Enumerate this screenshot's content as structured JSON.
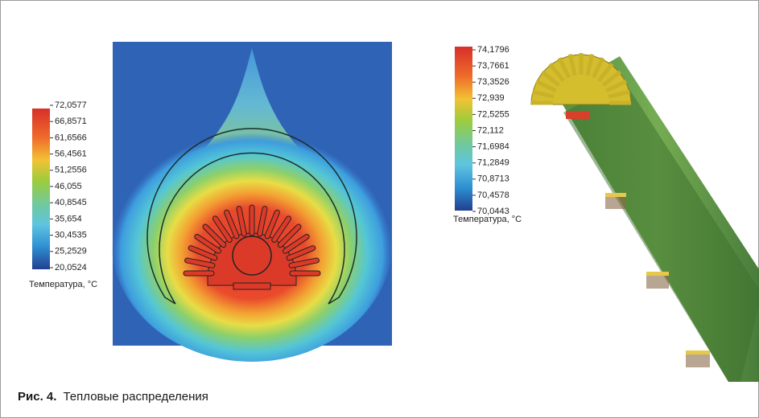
{
  "left_colorbar": {
    "ticks": [
      "72,0577",
      "66,8571",
      "61,6566",
      "56,4561",
      "51,2556",
      "46,055",
      "40,8545",
      "35,654",
      "30,4535",
      "25,2529",
      "20,0524"
    ],
    "unit": "Температура, °C"
  },
  "right_colorbar": {
    "ticks": [
      "74,1796",
      "73,7661",
      "73,3526",
      "72,939",
      "72,5255",
      "72,112",
      "71,6984",
      "71,2849",
      "70,8713",
      "70,4578",
      "70,0443"
    ],
    "unit": "Температура, °C"
  },
  "caption": {
    "label": "Рис. 4.",
    "text": "Тепловые распределения"
  }
}
